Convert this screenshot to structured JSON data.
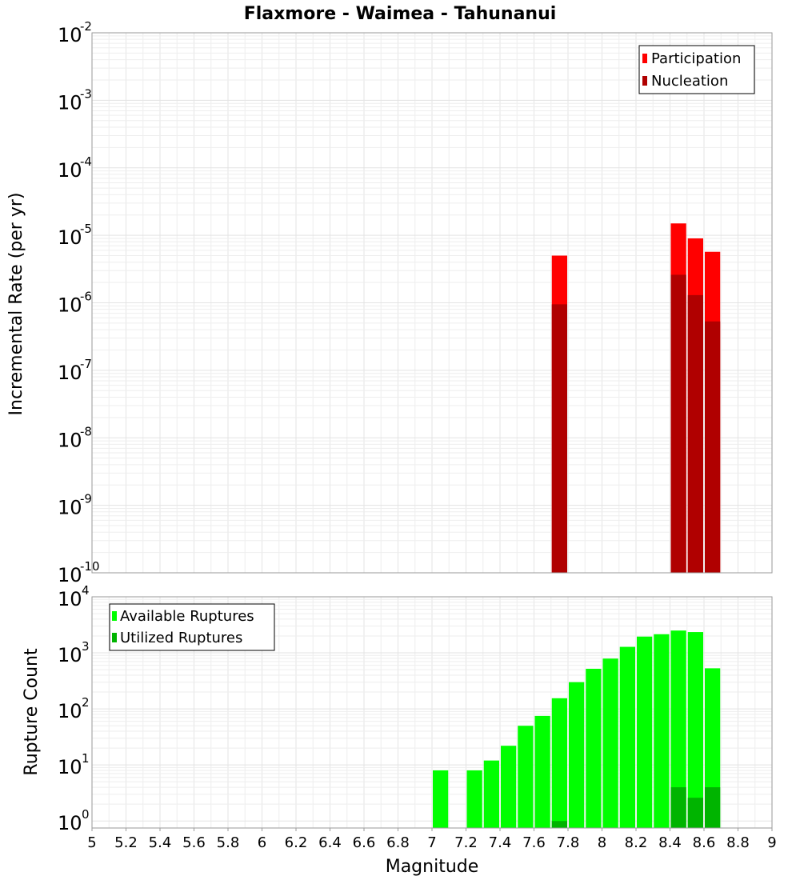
{
  "title": "Flaxmore - Waimea - Tahunanui",
  "colors": {
    "participation": "#ff0000",
    "nucleation": "#b00000",
    "available": "#00ff00",
    "utilized": "#00b400"
  },
  "chart_data": [
    {
      "type": "bar",
      "id": "rate",
      "ylabel": "Incremental Rate (per yr)",
      "yscale": "log",
      "ylim_exponents": [
        -10,
        -2
      ],
      "xlim": [
        5,
        9
      ],
      "bin_width": 0.1,
      "legend_position": "top-right",
      "series": [
        {
          "name": "Participation",
          "color_key": "participation",
          "points": [
            {
              "x": 7.75,
              "y": 5e-06
            },
            {
              "x": 8.45,
              "y": 1.5e-05
            },
            {
              "x": 8.55,
              "y": 9e-06
            },
            {
              "x": 8.65,
              "y": 5.7e-06
            }
          ]
        },
        {
          "name": "Nucleation",
          "color_key": "nucleation",
          "points": [
            {
              "x": 7.75,
              "y": 9.5e-07
            },
            {
              "x": 8.45,
              "y": 2.6e-06
            },
            {
              "x": 8.55,
              "y": 1.3e-06
            },
            {
              "x": 8.65,
              "y": 5.3e-07
            }
          ]
        }
      ]
    },
    {
      "type": "bar",
      "id": "count",
      "ylabel": "Rupture Count",
      "xlabel": "Magnitude",
      "yscale": "log",
      "ylim_exponents": [
        0,
        4
      ],
      "ymin_value": 0.75,
      "xlim": [
        5,
        9
      ],
      "bin_width": 0.1,
      "legend_position": "top-left",
      "x_ticks": [
        "5",
        "5.2",
        "5.4",
        "5.6",
        "5.8",
        "6",
        "6.2",
        "6.4",
        "6.6",
        "6.8",
        "7",
        "7.2",
        "7.4",
        "7.6",
        "7.8",
        "8",
        "8.2",
        "8.4",
        "8.6",
        "8.8",
        "9"
      ],
      "series": [
        {
          "name": "Available Ruptures",
          "color_key": "available",
          "points": [
            {
              "x": 7.05,
              "y": 8
            },
            {
              "x": 7.25,
              "y": 8
            },
            {
              "x": 7.35,
              "y": 12
            },
            {
              "x": 7.45,
              "y": 22
            },
            {
              "x": 7.55,
              "y": 50
            },
            {
              "x": 7.65,
              "y": 75
            },
            {
              "x": 7.75,
              "y": 155
            },
            {
              "x": 7.85,
              "y": 300
            },
            {
              "x": 7.95,
              "y": 520
            },
            {
              "x": 8.05,
              "y": 790
            },
            {
              "x": 8.15,
              "y": 1280
            },
            {
              "x": 8.25,
              "y": 1950
            },
            {
              "x": 8.35,
              "y": 2150
            },
            {
              "x": 8.45,
              "y": 2500
            },
            {
              "x": 8.55,
              "y": 2350
            },
            {
              "x": 8.65,
              "y": 530
            }
          ]
        },
        {
          "name": "Utilized Ruptures",
          "color_key": "utilized",
          "points": [
            {
              "x": 7.75,
              "y": 1
            },
            {
              "x": 8.45,
              "y": 4
            },
            {
              "x": 8.55,
              "y": 2.6
            },
            {
              "x": 8.65,
              "y": 4
            }
          ]
        }
      ]
    }
  ]
}
